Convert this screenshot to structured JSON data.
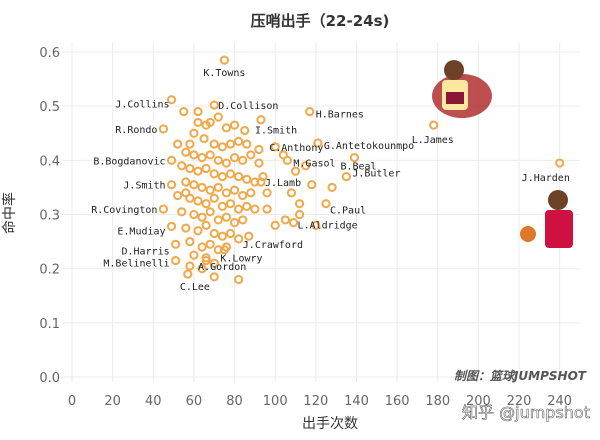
{
  "watermark": "知乎 @jumpshot",
  "credit": "制图：篮球JUMPSHOT",
  "chart_data": {
    "type": "scatter",
    "title": "压哨出手（22-24s)",
    "xlabel": "出手次数",
    "ylabel": "命中率",
    "xlim": [
      0,
      250
    ],
    "ylim": [
      0,
      0.6
    ],
    "xticks": [
      0,
      20,
      40,
      60,
      80,
      100,
      120,
      140,
      160,
      180,
      200,
      220,
      240
    ],
    "yticks": [
      0.0,
      0.1,
      0.2,
      0.3,
      0.4,
      0.5,
      0.6
    ],
    "grid": true,
    "labeled_points": [
      {
        "name": "K.Towns",
        "x": 75,
        "y": 0.585
      },
      {
        "name": "J.Collins",
        "x": 49,
        "y": 0.512
      },
      {
        "name": "D.Collison",
        "x": 70,
        "y": 0.502
      },
      {
        "name": "H.Barnes",
        "x": 117,
        "y": 0.49
      },
      {
        "name": "R.Rondo",
        "x": 45,
        "y": 0.458
      },
      {
        "name": "I.Smith",
        "x": 93,
        "y": 0.475
      },
      {
        "name": "G.Antetokounmpo",
        "x": 121,
        "y": 0.432
      },
      {
        "name": "C.Anthony",
        "x": 100,
        "y": 0.425
      },
      {
        "name": "B.Bogdanovic",
        "x": 49,
        "y": 0.4
      },
      {
        "name": "M.Gasol",
        "x": 106,
        "y": 0.4
      },
      {
        "name": "B.Beal",
        "x": 139,
        "y": 0.405
      },
      {
        "name": "J.Butler",
        "x": 135,
        "y": 0.37
      },
      {
        "name": "J.Smith",
        "x": 49,
        "y": 0.355
      },
      {
        "name": "J.Lamb",
        "x": 93,
        "y": 0.36
      },
      {
        "name": "C.Paul",
        "x": 125,
        "y": 0.32
      },
      {
        "name": "R.Covington",
        "x": 45,
        "y": 0.31
      },
      {
        "name": "E.Mudiay",
        "x": 49,
        "y": 0.278
      },
      {
        "name": "L.Aldridge",
        "x": 109,
        "y": 0.285
      },
      {
        "name": "J.Crawford",
        "x": 87,
        "y": 0.26
      },
      {
        "name": "D.Harris",
        "x": 51,
        "y": 0.245
      },
      {
        "name": "K.Lowry",
        "x": 75,
        "y": 0.235
      },
      {
        "name": "M.Belinelli",
        "x": 51,
        "y": 0.215
      },
      {
        "name": "A.Gordon",
        "x": 66,
        "y": 0.22
      },
      {
        "name": "C.Lee",
        "x": 57,
        "y": 0.19
      },
      {
        "name": "L.James",
        "x": 178,
        "y": 0.465
      },
      {
        "name": "J.Harden",
        "x": 240,
        "y": 0.395
      }
    ],
    "other_points": [
      [
        55,
        0.49
      ],
      [
        60,
        0.45
      ],
      [
        58,
        0.43
      ],
      [
        62,
        0.47
      ],
      [
        66,
        0.465
      ],
      [
        72,
        0.48
      ],
      [
        76,
        0.46
      ],
      [
        80,
        0.465
      ],
      [
        85,
        0.455
      ],
      [
        65,
        0.44
      ],
      [
        70,
        0.43
      ],
      [
        74,
        0.425
      ],
      [
        78,
        0.43
      ],
      [
        82,
        0.435
      ],
      [
        56,
        0.415
      ],
      [
        60,
        0.41
      ],
      [
        64,
        0.405
      ],
      [
        68,
        0.41
      ],
      [
        72,
        0.4
      ],
      [
        76,
        0.395
      ],
      [
        80,
        0.405
      ],
      [
        84,
        0.4
      ],
      [
        88,
        0.41
      ],
      [
        92,
        0.395
      ],
      [
        54,
        0.39
      ],
      [
        58,
        0.385
      ],
      [
        62,
        0.38
      ],
      [
        66,
        0.385
      ],
      [
        70,
        0.375
      ],
      [
        74,
        0.37
      ],
      [
        78,
        0.375
      ],
      [
        82,
        0.37
      ],
      [
        86,
        0.365
      ],
      [
        90,
        0.36
      ],
      [
        94,
        0.37
      ],
      [
        56,
        0.36
      ],
      [
        60,
        0.355
      ],
      [
        64,
        0.35
      ],
      [
        68,
        0.345
      ],
      [
        72,
        0.35
      ],
      [
        76,
        0.34
      ],
      [
        80,
        0.345
      ],
      [
        84,
        0.335
      ],
      [
        88,
        0.34
      ],
      [
        52,
        0.335
      ],
      [
        58,
        0.33
      ],
      [
        62,
        0.325
      ],
      [
        66,
        0.32
      ],
      [
        70,
        0.33
      ],
      [
        74,
        0.315
      ],
      [
        78,
        0.32
      ],
      [
        82,
        0.31
      ],
      [
        86,
        0.315
      ],
      [
        90,
        0.31
      ],
      [
        96,
        0.31
      ],
      [
        54,
        0.305
      ],
      [
        60,
        0.3
      ],
      [
        64,
        0.295
      ],
      [
        68,
        0.305
      ],
      [
        72,
        0.29
      ],
      [
        76,
        0.295
      ],
      [
        80,
        0.285
      ],
      [
        84,
        0.29
      ],
      [
        56,
        0.275
      ],
      [
        62,
        0.27
      ],
      [
        66,
        0.28
      ],
      [
        70,
        0.265
      ],
      [
        74,
        0.26
      ],
      [
        78,
        0.265
      ],
      [
        82,
        0.255
      ],
      [
        58,
        0.25
      ],
      [
        64,
        0.24
      ],
      [
        68,
        0.245
      ],
      [
        72,
        0.235
      ],
      [
        76,
        0.24
      ],
      [
        60,
        0.225
      ],
      [
        66,
        0.215
      ],
      [
        70,
        0.21
      ],
      [
        58,
        0.205
      ],
      [
        64,
        0.2
      ],
      [
        104,
        0.41
      ],
      [
        110,
        0.38
      ],
      [
        108,
        0.34
      ],
      [
        112,
        0.3
      ],
      [
        115,
        0.39
      ],
      [
        118,
        0.355
      ],
      [
        105,
        0.29
      ],
      [
        96,
        0.34
      ],
      [
        100,
        0.28
      ],
      [
        112,
        0.32
      ],
      [
        128,
        0.35
      ],
      [
        120,
        0.28
      ],
      [
        62,
        0.49
      ],
      [
        68,
        0.47
      ],
      [
        86,
        0.43
      ],
      [
        92,
        0.42
      ],
      [
        82,
        0.18
      ],
      [
        70,
        0.185
      ],
      [
        52,
        0.43
      ],
      [
        56,
        0.34
      ]
    ]
  }
}
